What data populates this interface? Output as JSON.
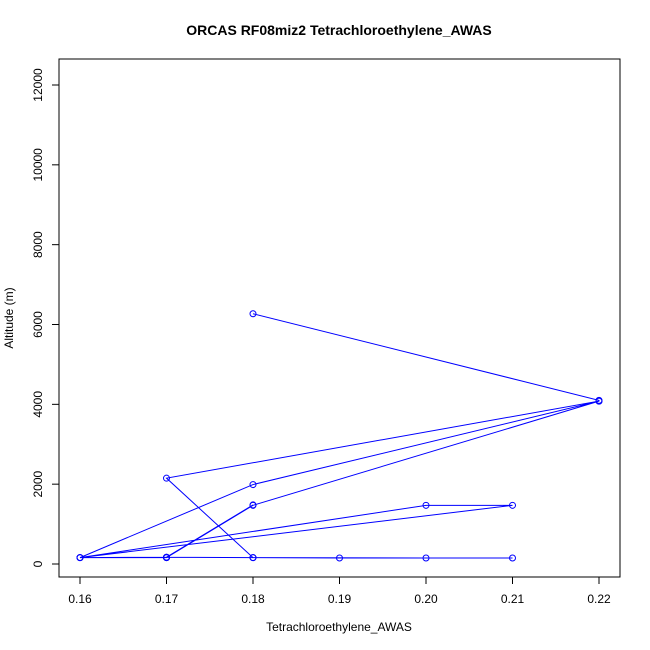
{
  "chart_data": {
    "type": "line",
    "title": "ORCAS RF08miz2 Tetrachloroethylene_AWAS",
    "xlabel": "Tetrachloroethylene_AWAS",
    "ylabel": "Altitude (m)",
    "xlim": [
      0.16,
      0.22
    ],
    "ylim": [
      0,
      12000
    ],
    "xticks": [
      "0.16",
      "0.17",
      "0.18",
      "0.19",
      "0.20",
      "0.21",
      "0.22"
    ],
    "yticks": [
      "0",
      "2000",
      "4000",
      "6000",
      "8000",
      "10000",
      "12000"
    ],
    "series": [
      {
        "color": "#0000ff",
        "marker": "open-circle",
        "x": [
          0.18,
          0.22,
          0.22,
          0.17,
          0.18,
          0.2,
          0.21,
          0.19,
          0.18,
          0.17,
          0.16,
          0.18,
          0.22,
          0.18,
          0.17,
          0.16,
          0.2,
          0.21,
          0.16,
          0.17,
          0.18,
          0.17
        ],
        "y": [
          6270,
          4100,
          4080,
          2150,
          160,
          150,
          150,
          150,
          160,
          170,
          160,
          1990,
          4080,
          1470,
          160,
          160,
          1470,
          1470,
          160,
          170,
          1480,
          160
        ]
      }
    ]
  }
}
